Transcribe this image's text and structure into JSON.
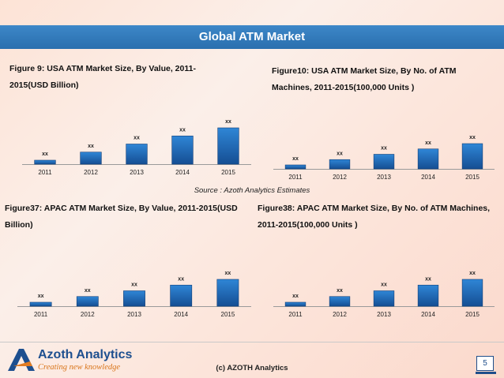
{
  "header": {
    "title": "Global ATM Market"
  },
  "source": "Source : Azoth Analytics Estimates",
  "footer": {
    "brand": "Azoth Analytics",
    "tagline": "Creating new knowledge",
    "copyright": "(c) AZOTH Analytics",
    "page": "5"
  },
  "colors": {
    "bar_top": "#2f86d6",
    "bar_bottom": "#154e93",
    "header": "#2f78bb"
  },
  "chart_data": [
    {
      "type": "bar",
      "title_line1": "Figure  9:  USA  ATM    Market  Size,  By  Value,  2011-",
      "title_line2": "2015(USD Billion)",
      "categories": [
        "2011",
        "2012",
        "2013",
        "2014",
        "2015"
      ],
      "values": [
        1,
        2,
        3,
        4,
        5
      ],
      "data_labels": [
        "xx",
        "xx",
        "xx",
        "xx",
        "xx"
      ]
    },
    {
      "type": "bar",
      "title_line1": "Figure10:  USA  ATM    Market  Size,  By  No.  of  ATM",
      "title_line2": "Machines, 2011-2015(100,000 Units )",
      "categories": [
        "2011",
        "2012",
        "2013",
        "2014",
        "2015"
      ],
      "values": [
        1,
        2,
        3,
        4,
        5
      ],
      "data_labels": [
        "xx",
        "xx",
        "xx",
        "xx",
        "xx"
      ]
    },
    {
      "type": "bar",
      "title_line1": "Figure37: APAC ATM  Market Size, By Value, 2011-2015(USD",
      "title_line2": "Billion)",
      "categories": [
        "2011",
        "2012",
        "2013",
        "2014",
        "2015"
      ],
      "values": [
        1,
        2,
        3,
        4,
        5
      ],
      "data_labels": [
        "xx",
        "xx",
        "xx",
        "xx",
        "xx"
      ]
    },
    {
      "type": "bar",
      "title_line1": "Figure38: APAC ATM   Market Size, By No. of ATM Machines,",
      "title_line2": "2011-2015(100,000 Units )",
      "categories": [
        "2011",
        "2012",
        "2013",
        "2014",
        "2015"
      ],
      "values": [
        1,
        2,
        3,
        4,
        5
      ],
      "data_labels": [
        "xx",
        "xx",
        "xx",
        "xx",
        "xx"
      ]
    }
  ]
}
